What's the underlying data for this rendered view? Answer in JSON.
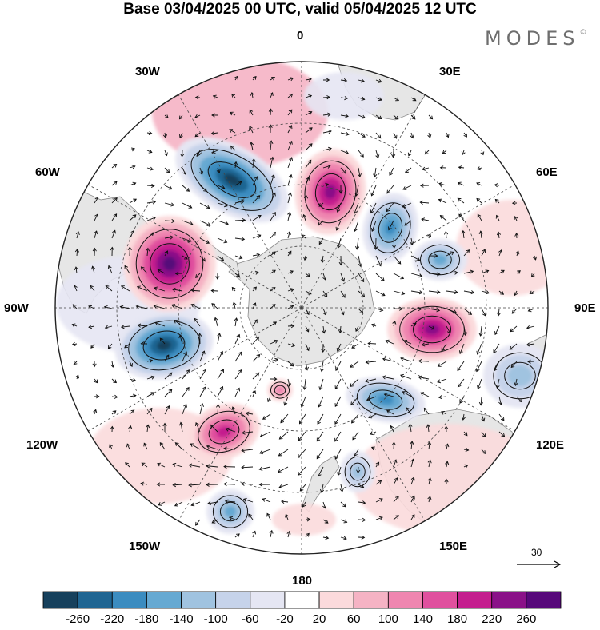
{
  "title": "Base 03/04/2025 00 UTC, valid 05/04/2025 12 UTC",
  "brand": "MODES",
  "brand_mark": "©",
  "longitude_labels": {
    "lon_0": "0",
    "lon_30e": "30E",
    "lon_60e": "60E",
    "lon_90e": "90E",
    "lon_120e": "120E",
    "lon_150e": "150E",
    "lon_180": "180",
    "lon_150w": "150W",
    "lon_120w": "120W",
    "lon_90w": "90W",
    "lon_60w": "60W",
    "lon_30w": "30W"
  },
  "vector_reference": {
    "label": "30"
  },
  "colorbar": {
    "ticks": [
      "-260",
      "-220",
      "-180",
      "-140",
      "-100",
      "-60",
      "-20",
      "20",
      "60",
      "100",
      "140",
      "180",
      "220",
      "260"
    ],
    "colors": [
      "#16405c",
      "#1f6592",
      "#3b8cc0",
      "#66a9d2",
      "#a0c3e0",
      "#c6d3ea",
      "#e5e6f3",
      "#ffffff",
      "#fbdadc",
      "#f5b3c4",
      "#ef86b0",
      "#e0509e",
      "#c41e8e",
      "#8a1188",
      "#57087a"
    ]
  },
  "map_colors": {
    "land": "#e6e6e6",
    "coast": "#8a8a8a",
    "grid": "#444444"
  },
  "anomaly_features": [
    {
      "name": "neg-atlantic",
      "value": -260
    },
    {
      "name": "pos-south-atlantic",
      "value": 220
    },
    {
      "name": "pos-south-america",
      "value": 260
    },
    {
      "name": "neg-southeast-pacific",
      "value": -260
    },
    {
      "name": "neg-indian-west",
      "value": -180
    },
    {
      "name": "neg-indian-east",
      "value": -140
    },
    {
      "name": "pos-indian-90e",
      "value": 220
    },
    {
      "name": "neg-south-australia",
      "value": -180
    },
    {
      "name": "pos-south-pacific",
      "value": 180
    },
    {
      "name": "neg-ross-sea",
      "value": -140
    },
    {
      "name": "neg-tasman",
      "value": -100
    },
    {
      "name": "neg-west-australia",
      "value": -100
    },
    {
      "name": "pos-near-pole",
      "value": 100
    }
  ]
}
